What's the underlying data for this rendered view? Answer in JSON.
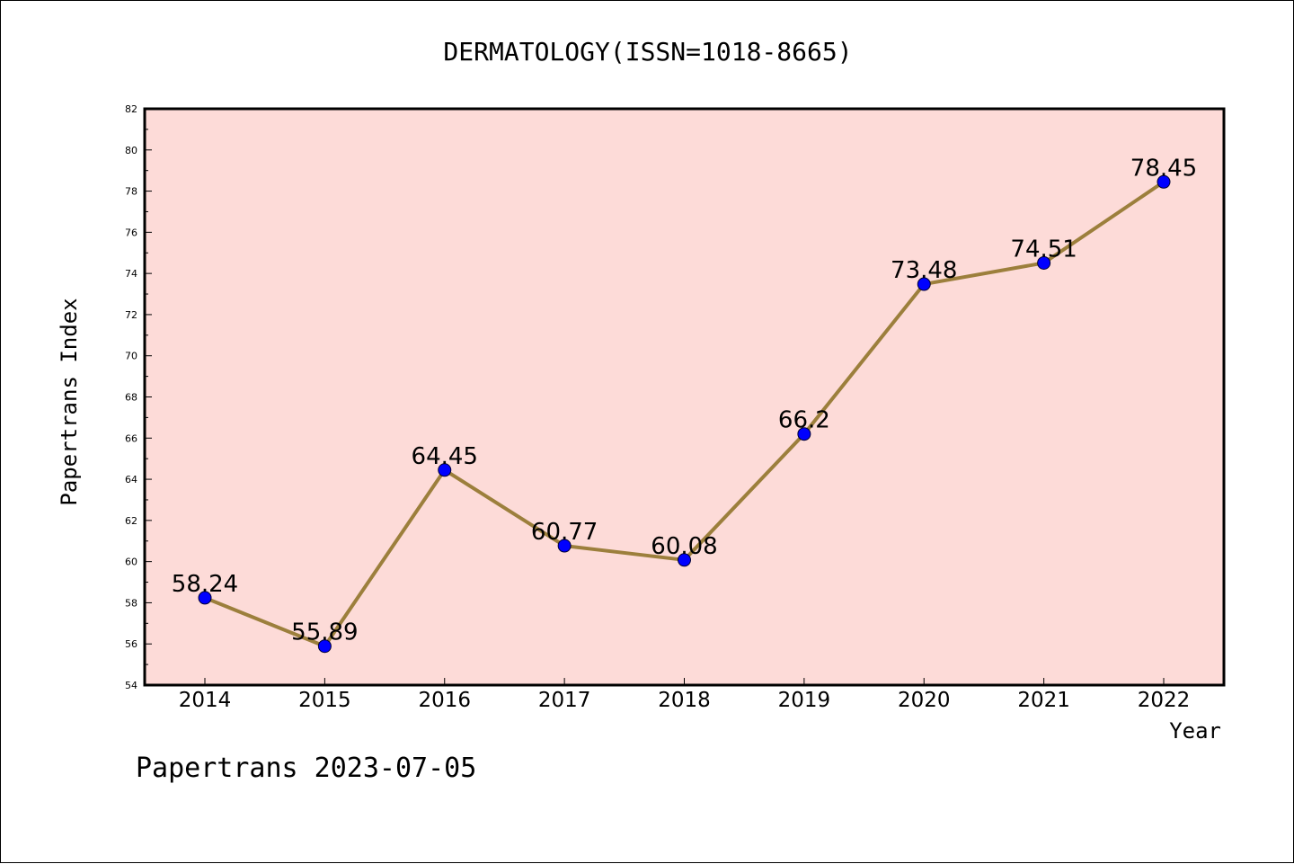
{
  "chart_data": {
    "type": "line",
    "title": "DERMATOLOGY(ISSN=1018-8665)",
    "xlabel": "Year",
    "ylabel": "Papertrans Index",
    "categories": [
      "2014",
      "2015",
      "2016",
      "2017",
      "2018",
      "2019",
      "2020",
      "2021",
      "2022"
    ],
    "values": [
      58.24,
      55.89,
      64.45,
      60.77,
      60.08,
      66.2,
      73.48,
      74.51,
      78.45
    ],
    "data_labels": [
      "58.24",
      "55.89",
      "64.45",
      "60.77",
      "60.08",
      "66.2",
      "73.48",
      "74.51",
      "78.45"
    ],
    "ylim": [
      54,
      82
    ],
    "yticks": [
      54,
      56,
      58,
      60,
      62,
      64,
      66,
      68,
      70,
      72,
      74,
      76,
      78,
      80,
      82
    ],
    "grid": false,
    "colors": {
      "plot_background": "#fddbd8",
      "line": "#9c7f3c",
      "marker": "#0000ff"
    }
  },
  "footer": "Papertrans 2023-07-05"
}
